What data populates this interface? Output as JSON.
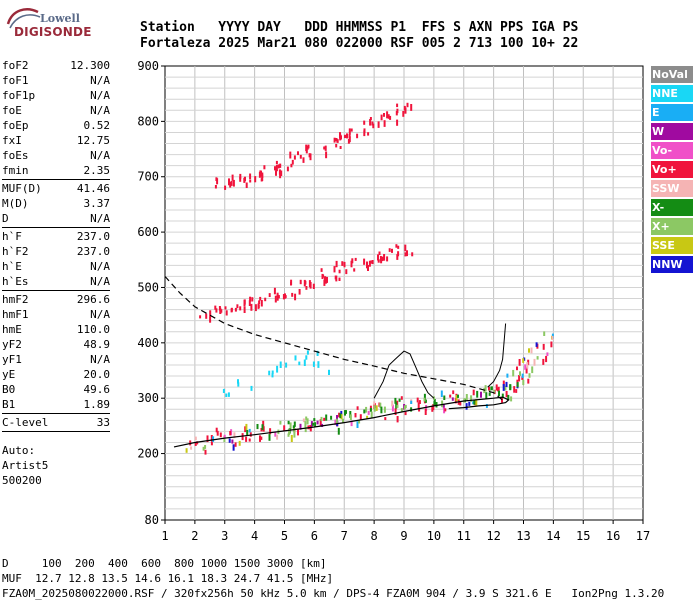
{
  "logo": {
    "line1": "Lowell",
    "line2": "DIGISONDE"
  },
  "header": {
    "line1": "Station   YYYY DAY   DDD HHMMSS P1  FFS S AXN PPS IGA PS",
    "line2": "Fortaleza 2025 Mar21 080 022000 RSF 005 2 713 100 10+ 22"
  },
  "params": {
    "g1": [
      {
        "name": "foF2",
        "value": "12.300"
      },
      {
        "name": "foF1",
        "value": "N/A"
      },
      {
        "name": "foF1p",
        "value": "N/A"
      },
      {
        "name": "foE",
        "value": "N/A"
      },
      {
        "name": "foEp",
        "value": "0.52"
      },
      {
        "name": "fxI",
        "value": "12.75"
      },
      {
        "name": "foEs",
        "value": "N/A"
      },
      {
        "name": "fmin",
        "value": "2.35"
      }
    ],
    "g2": [
      {
        "name": "MUF(D)",
        "value": "41.46"
      },
      {
        "name": "M(D)",
        "value": "3.37"
      },
      {
        "name": "D",
        "value": "N/A"
      }
    ],
    "g3": [
      {
        "name": "h`F",
        "value": "237.0"
      },
      {
        "name": "h`F2",
        "value": "237.0"
      },
      {
        "name": "h`E",
        "value": "N/A"
      },
      {
        "name": "h`Es",
        "value": "N/A"
      }
    ],
    "g4": [
      {
        "name": "hmF2",
        "value": "296.6"
      },
      {
        "name": "hmF1",
        "value": "N/A"
      },
      {
        "name": "hmE",
        "value": "110.0"
      },
      {
        "name": "yF2",
        "value": "48.9"
      },
      {
        "name": "yF1",
        "value": "N/A"
      },
      {
        "name": "yE",
        "value": "20.0"
      },
      {
        "name": "B0",
        "value": "49.6"
      },
      {
        "name": "B1",
        "value": "1.89"
      }
    ],
    "g5": [
      {
        "name": "C-level",
        "value": "33"
      }
    ],
    "auto": [
      "Auto:",
      "Artist5",
      "500200"
    ]
  },
  "legend": [
    {
      "label": "NoVal",
      "color": "#8c8c8c"
    },
    {
      "label": "NNE",
      "color": "#19d7f5"
    },
    {
      "label": "E",
      "color": "#19aef5"
    },
    {
      "label": "W",
      "color": "#a00aa0"
    },
    {
      "label": "Vo-",
      "color": "#f050c8"
    },
    {
      "label": "Vo+",
      "color": "#f0143c"
    },
    {
      "label": "SSW",
      "color": "#f5b4b4"
    },
    {
      "label": "X-",
      "color": "#148c14"
    },
    {
      "label": "X+",
      "color": "#8cc864"
    },
    {
      "label": "SSE",
      "color": "#c8c814"
    },
    {
      "label": "NNW",
      "color": "#1414d2"
    }
  ],
  "footer": {
    "line1": "D     100  200  400  600  800 1000 1500 3000 [km]",
    "line2": "MUF  12.7 12.8 13.5 14.6 16.1 18.3 24.7 41.5 [MHz]",
    "line3": "FZA0M_2025080022000.RSF / 320fx256h 50 kHz 5.0 km / DPS-4 FZA0M 904 / 3.9 S 321.6 E   Ion2Png 1.3.20"
  },
  "chart_data": {
    "type": "scatter",
    "xlim": [
      1,
      17
    ],
    "ylim": [
      80,
      900
    ],
    "xticks": [
      "1",
      "2",
      "3",
      "4",
      "5",
      "6",
      "7",
      "8",
      "9",
      "10",
      "11",
      "12",
      "13",
      "14",
      "15",
      "16",
      "17"
    ],
    "yticks": [
      "80",
      "200",
      "300",
      "400",
      "500",
      "600",
      "700",
      "800",
      "900"
    ],
    "grid": true,
    "series": [
      {
        "name": "Vo+",
        "x": [
          2.0,
          2.5,
          3.0,
          3.5,
          4.0,
          4.5,
          5.0,
          5.5,
          6.0,
          6.5,
          7.0,
          7.5,
          8.0,
          8.5,
          9.0,
          9.5,
          10.0,
          10.5,
          11.0,
          11.5,
          12.0,
          12.3,
          12.6,
          12.9,
          13.2,
          13.5,
          13.7
        ],
        "y": [
          222,
          228,
          232,
          235,
          238,
          243,
          247,
          252,
          256,
          261,
          266,
          272,
          278,
          284,
          290,
          294,
          296,
          298,
          300,
          305,
          310,
          318,
          330,
          345,
          362,
          385,
          410
        ]
      },
      {
        "name": "Vo+ (second hop)",
        "x": [
          2.5,
          3.0,
          3.5,
          4.0,
          4.5,
          5.0,
          5.5,
          6.0,
          6.5,
          7.0,
          7.5,
          8.0,
          8.5,
          9.0
        ],
        "y": [
          455,
          462,
          470,
          477,
          485,
          495,
          505,
          515,
          526,
          540,
          548,
          555,
          562,
          572
        ]
      },
      {
        "name": "Vo+ (third hop)",
        "x": [
          3.0,
          3.5,
          4.0,
          4.5,
          5.0,
          5.5,
          6.0,
          6.5,
          7.0,
          7.5,
          8.0,
          8.5,
          9.0
        ],
        "y": [
          692,
          698,
          705,
          714,
          725,
          737,
          750,
          762,
          772,
          786,
          800,
          812,
          826
        ]
      },
      {
        "name": "NNE",
        "x": [
          3.0,
          3.5,
          4.5,
          5.0,
          5.5,
          6.0,
          6.3
        ],
        "y": [
          310,
          330,
          350,
          360,
          375,
          380,
          360
        ]
      },
      {
        "name": "X-",
        "x": [
          4.0,
          5.0,
          6.0,
          7.0,
          8.0,
          9.0,
          10.0,
          11.0,
          12.0,
          12.5
        ],
        "y": [
          245,
          252,
          262,
          272,
          282,
          292,
          300,
          305,
          315,
          330
        ]
      },
      {
        "name": "X+",
        "x": [
          5.0,
          6.0,
          7.0,
          8.0,
          9.0,
          10.0,
          11.0,
          12.0,
          12.8
        ],
        "y": [
          250,
          258,
          268,
          280,
          290,
          298,
          305,
          316,
          340
        ]
      }
    ],
    "curves": {
      "o_trace_x": [
        1.3,
        2.0,
        3.0,
        4.0,
        5.0,
        6.0,
        7.0,
        8.0,
        9.0,
        10.0,
        11.0,
        12.0,
        12.3,
        12.5,
        12.4,
        12.0,
        11.5,
        11.0,
        10.5
      ],
      "o_trace_y": [
        212,
        220,
        228,
        234,
        241,
        248,
        256,
        265,
        276,
        286,
        295,
        300,
        302,
        297,
        292,
        288,
        286,
        283,
        281
      ],
      "profile_x": [
        1.0,
        1.5,
        2.0,
        3.0,
        4.0,
        5.0,
        6.0,
        7.0,
        8.0,
        9.0,
        10.0,
        11.0,
        12.0,
        12.3
      ],
      "profile_y": [
        520,
        490,
        465,
        435,
        415,
        400,
        385,
        370,
        358,
        345,
        335,
        325,
        310,
        296.6
      ],
      "x_trace_x": [
        8.0,
        8.3,
        8.5,
        8.7,
        9.0,
        9.2,
        9.4,
        9.6,
        9.8,
        10.0
      ],
      "x_trace_y": [
        300,
        330,
        360,
        370,
        385,
        380,
        355,
        330,
        310,
        300
      ],
      "spike_x": [
        11.8,
        12.0,
        12.2,
        12.3,
        12.4
      ],
      "spike_y": [
        320,
        330,
        350,
        370,
        435
      ]
    }
  }
}
